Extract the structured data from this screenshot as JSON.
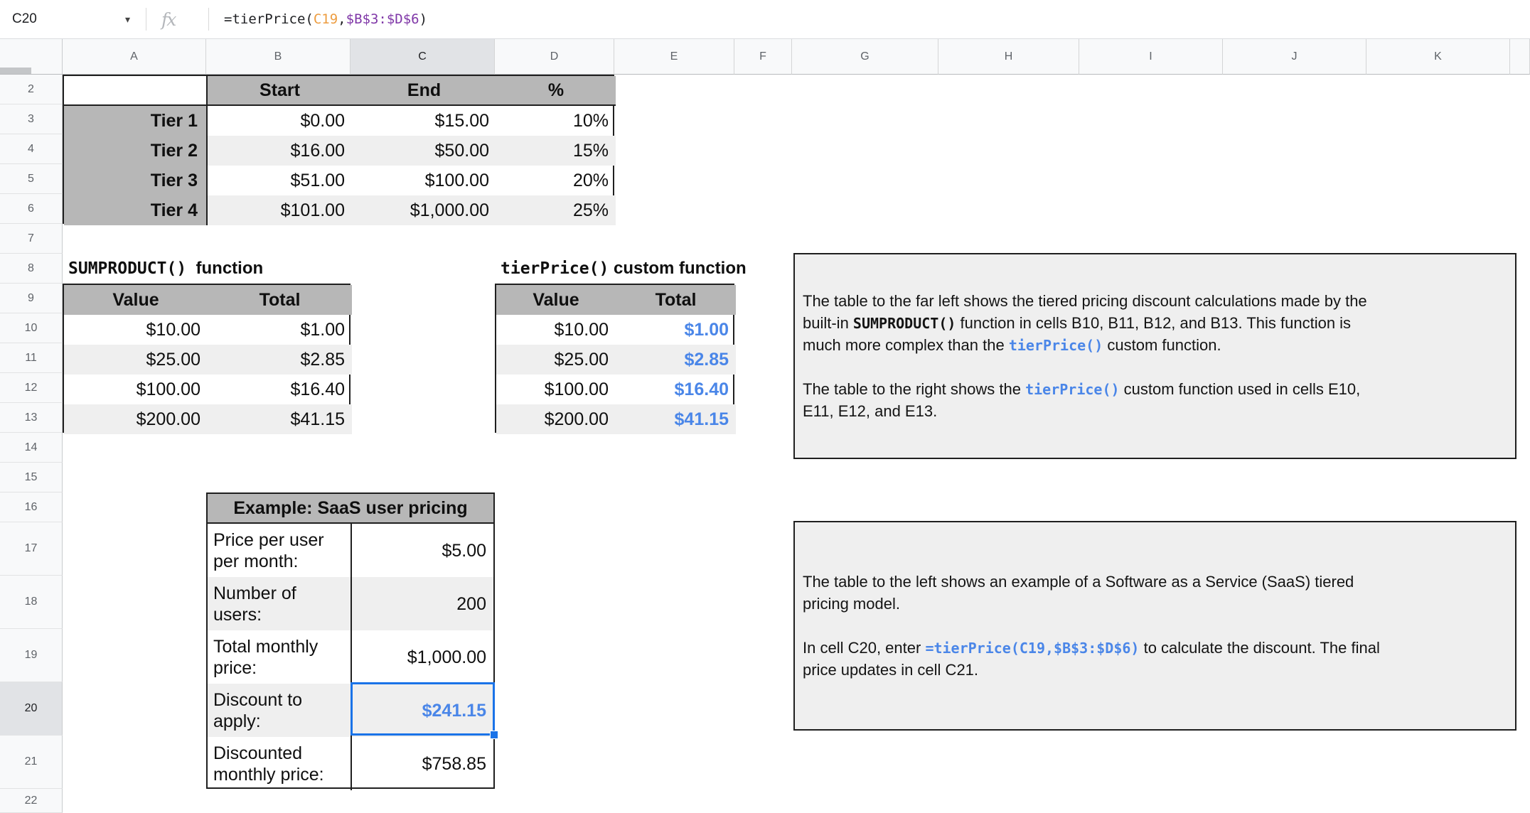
{
  "formula_bar": {
    "cell_reference": "C20",
    "fx_icon": "fx",
    "dropdown_icon": "▾",
    "formula_runs": [
      {
        "t": "=tierPrice(",
        "c": "default"
      },
      {
        "t": "C19",
        "c": "orange"
      },
      {
        "t": ",",
        "c": "default"
      },
      {
        "t": "$B$3:$D$6",
        "c": "purple"
      },
      {
        "t": ")",
        "c": "default"
      }
    ]
  },
  "grid": {
    "column_labels": [
      "A",
      "B",
      "C",
      "D",
      "E",
      "F",
      "G",
      "H",
      "I",
      "J",
      "K"
    ],
    "row_labels": [
      "2",
      "3",
      "4",
      "5",
      "6",
      "7",
      "8",
      "9",
      "10",
      "11",
      "12",
      "13",
      "14",
      "15",
      "16",
      "17",
      "18",
      "19",
      "20",
      "21",
      "22"
    ],
    "selected_column": "C",
    "selected_row": "20",
    "selected_cell": "C20"
  },
  "tier_table": {
    "headers": [
      "Start",
      "End",
      "%"
    ],
    "rows": [
      {
        "label": "Tier 1",
        "start": "$0.00",
        "end": "$15.00",
        "pct": "10%"
      },
      {
        "label": "Tier 2",
        "start": "$16.00",
        "end": "$50.00",
        "pct": "15%"
      },
      {
        "label": "Tier 3",
        "start": "$51.00",
        "end": "$100.00",
        "pct": "20%"
      },
      {
        "label": "Tier 4",
        "start": "$101.00",
        "end": "$1,000.00",
        "pct": "25%"
      }
    ]
  },
  "sumproduct_table": {
    "title_runs": [
      {
        "t": "SUMPRODUCT()",
        "s": "mono"
      },
      {
        "t": "  function",
        "s": "plain"
      }
    ],
    "headers": [
      "Value",
      "Total"
    ],
    "rows": [
      [
        "$10.00",
        "$1.00"
      ],
      [
        "$25.00",
        "$2.85"
      ],
      [
        "$100.00",
        "$16.40"
      ],
      [
        "$200.00",
        "$41.15"
      ]
    ],
    "total_style": "black"
  },
  "tierprice_table": {
    "title_runs": [
      {
        "t": "tierPrice()",
        "s": "mono"
      },
      {
        "t": " custom function",
        "s": "plain"
      }
    ],
    "headers": [
      "Value",
      "Total"
    ],
    "rows": [
      [
        "$10.00",
        "$1.00"
      ],
      [
        "$25.00",
        "$2.85"
      ],
      [
        "$100.00",
        "$16.40"
      ],
      [
        "$200.00",
        "$41.15"
      ]
    ],
    "total_style": "blue"
  },
  "saas_table": {
    "title": "Example: SaaS user pricing",
    "rows": [
      {
        "label": "Price per user per month:",
        "value": "$5.00",
        "value_style": "black",
        "selected": false
      },
      {
        "label": "Number of users:",
        "value": "200",
        "value_style": "black",
        "selected": false
      },
      {
        "label": "Total monthly price:",
        "value": "$1,000.00",
        "value_style": "black",
        "selected": false
      },
      {
        "label": "Discount to apply:",
        "value": "$241.15",
        "value_style": "blue",
        "selected": true
      },
      {
        "label": "Discounted monthly price:",
        "value": "$758.85",
        "value_style": "black",
        "selected": false
      }
    ]
  },
  "text_boxes": [
    {
      "lines": [
        [
          {
            "t": "The table to the far left shows the tiered pricing discount calculations made by the",
            "s": "plain"
          }
        ],
        [
          {
            "t": "built-in ",
            "s": "plain"
          },
          {
            "t": "SUMPRODUCT()",
            "s": "mono"
          },
          {
            "t": " function in cells B10, B11, B12, and B13. This function is",
            "s": "plain"
          }
        ],
        [
          {
            "t": "much more complex than the ",
            "s": "plain"
          },
          {
            "t": "tierPrice()",
            "s": "mono-blue"
          },
          {
            "t": " custom function.",
            "s": "plain"
          }
        ],
        [],
        [
          {
            "t": "The table to the right shows the ",
            "s": "plain"
          },
          {
            "t": "tierPrice()",
            "s": "mono-blue"
          },
          {
            "t": " custom function used in cells E10,",
            "s": "plain"
          }
        ],
        [
          {
            "t": "E11, E12, and E13.",
            "s": "plain"
          }
        ]
      ]
    },
    {
      "lines": [
        [
          {
            "t": "The table to the left shows an example of a Software as a Service (SaaS) tiered",
            "s": "plain"
          }
        ],
        [
          {
            "t": "pricing model.",
            "s": "plain"
          }
        ],
        [],
        [
          {
            "t": "In cell C20, enter ",
            "s": "plain"
          },
          {
            "t": "=tierPrice(C19,$B$3:$D$6)",
            "s": "mono-blue"
          },
          {
            "t": " to calculate the discount. The final",
            "s": "plain"
          }
        ],
        [
          {
            "t": "price updates in cell C21.",
            "s": "plain"
          }
        ]
      ]
    }
  ],
  "colors": {
    "selection_blue": "#1a73e8",
    "value_blue": "#4a86e8",
    "formula_orange": "#ED9D41",
    "formula_purple": "#8038A8",
    "table_header_gray": "#b7b7b7",
    "banding_gray": "#efefef",
    "header_bg": "#f8f9fa",
    "header_selected_bg": "#e1e3e6",
    "border_dark": "#1f1f1f"
  }
}
